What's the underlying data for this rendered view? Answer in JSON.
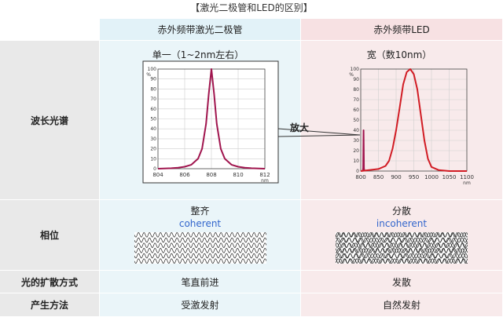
{
  "page_title": "【激光二极管和LED的区别】",
  "headers": {
    "laser": "赤外频带激光二极管",
    "led": "赤外频带LED"
  },
  "rows": {
    "spectrum": "波长光谱",
    "phase": "相位",
    "spread": "光的扩散方式",
    "generation": "产生方法"
  },
  "spectrum": {
    "laser_caption": "单一（1~2nm左右）",
    "led_caption": "宽（数10nm）",
    "zoom_label": "放大"
  },
  "phase": {
    "laser_zh": "整齐",
    "laser_en": "coherent",
    "led_zh": "分散",
    "led_en": "incoherent"
  },
  "spread": {
    "laser": "笔直前进",
    "led": "发散"
  },
  "generation": {
    "laser": "受激发射",
    "led": "自然发射"
  },
  "colors": {
    "laser_curve": "#a0154e",
    "led_curve": "#d11c24",
    "laser_bg": "#eaf5f9",
    "led_bg": "#f8eaeb",
    "label_bg": "#e9e9e9"
  },
  "chart_data": [
    {
      "type": "line",
      "title": "",
      "xlabel": "nm",
      "ylabel": "%",
      "xlim": [
        804,
        812
      ],
      "ylim": [
        0,
        100
      ],
      "x_ticks": [
        804,
        806,
        808,
        810,
        812
      ],
      "y_ticks": [
        0,
        10,
        20,
        30,
        40,
        50,
        60,
        70,
        80,
        90,
        100
      ],
      "grid": true,
      "series": [
        {
          "x": [
            804,
            805,
            805.5,
            806,
            806.5,
            807,
            807.3,
            807.6,
            807.8,
            808,
            808.2,
            808.4,
            808.7,
            809,
            809.5,
            810,
            810.5,
            811,
            812
          ],
          "values": [
            0,
            0.5,
            1,
            2,
            4,
            10,
            20,
            45,
            75,
            100,
            75,
            45,
            20,
            10,
            4,
            2,
            1,
            0.5,
            0
          ]
        }
      ]
    },
    {
      "type": "line",
      "title": "",
      "xlabel": "nm",
      "ylabel": "%",
      "xlim": [
        800,
        1100
      ],
      "ylim": [
        0,
        100
      ],
      "x_ticks": [
        800,
        850,
        900,
        950,
        1000,
        1050,
        1100
      ],
      "y_ticks": [
        0,
        10,
        20,
        30,
        40,
        50,
        60,
        70,
        80,
        90,
        100
      ],
      "grid": true,
      "series": [
        {
          "x": [
            805,
            806,
            807,
            808,
            809,
            810,
            811
          ],
          "values": [
            0,
            0.5,
            3,
            40,
            3,
            0.5,
            0
          ]
        },
        {
          "x": [
            800,
            850,
            870,
            880,
            890,
            900,
            910,
            920,
            930,
            940,
            950,
            960,
            970,
            980,
            990,
            1000,
            1020,
            1050,
            1100
          ],
          "values": [
            0,
            2,
            5,
            10,
            22,
            40,
            62,
            85,
            97,
            100,
            95,
            80,
            55,
            30,
            12,
            4,
            1,
            0,
            0
          ]
        }
      ]
    }
  ]
}
